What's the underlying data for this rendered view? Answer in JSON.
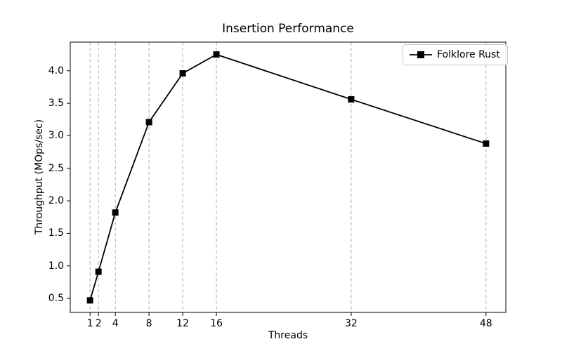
{
  "figure": {
    "background": "#ffffff"
  },
  "chart_data": {
    "type": "line",
    "title": "Insertion Performance",
    "xlabel": "Threads",
    "ylabel": "Throughput (MOps/sec)",
    "series": [
      {
        "name": "Folklore Rust",
        "x": [
          1,
          2,
          4,
          8,
          12,
          16,
          32,
          48
        ],
        "y": [
          0.47,
          0.91,
          1.82,
          3.21,
          3.96,
          4.25,
          3.56,
          2.88
        ],
        "color": "#000000",
        "marker": "square",
        "line_width": 1.8,
        "marker_size": 9
      }
    ],
    "x_ticks": [
      1,
      2,
      4,
      8,
      12,
      16,
      32,
      48
    ],
    "y_ticks": [
      0.5,
      1.0,
      1.5,
      2.0,
      2.5,
      3.0,
      3.5,
      4.0
    ],
    "xlim": [
      -1.35,
      50.35
    ],
    "ylim": [
      0.285,
      4.44
    ],
    "grid": "vertical-dashed",
    "grid_color": "#b2b2b2",
    "axis_color": "#000000",
    "legend_position": "upper-right"
  }
}
